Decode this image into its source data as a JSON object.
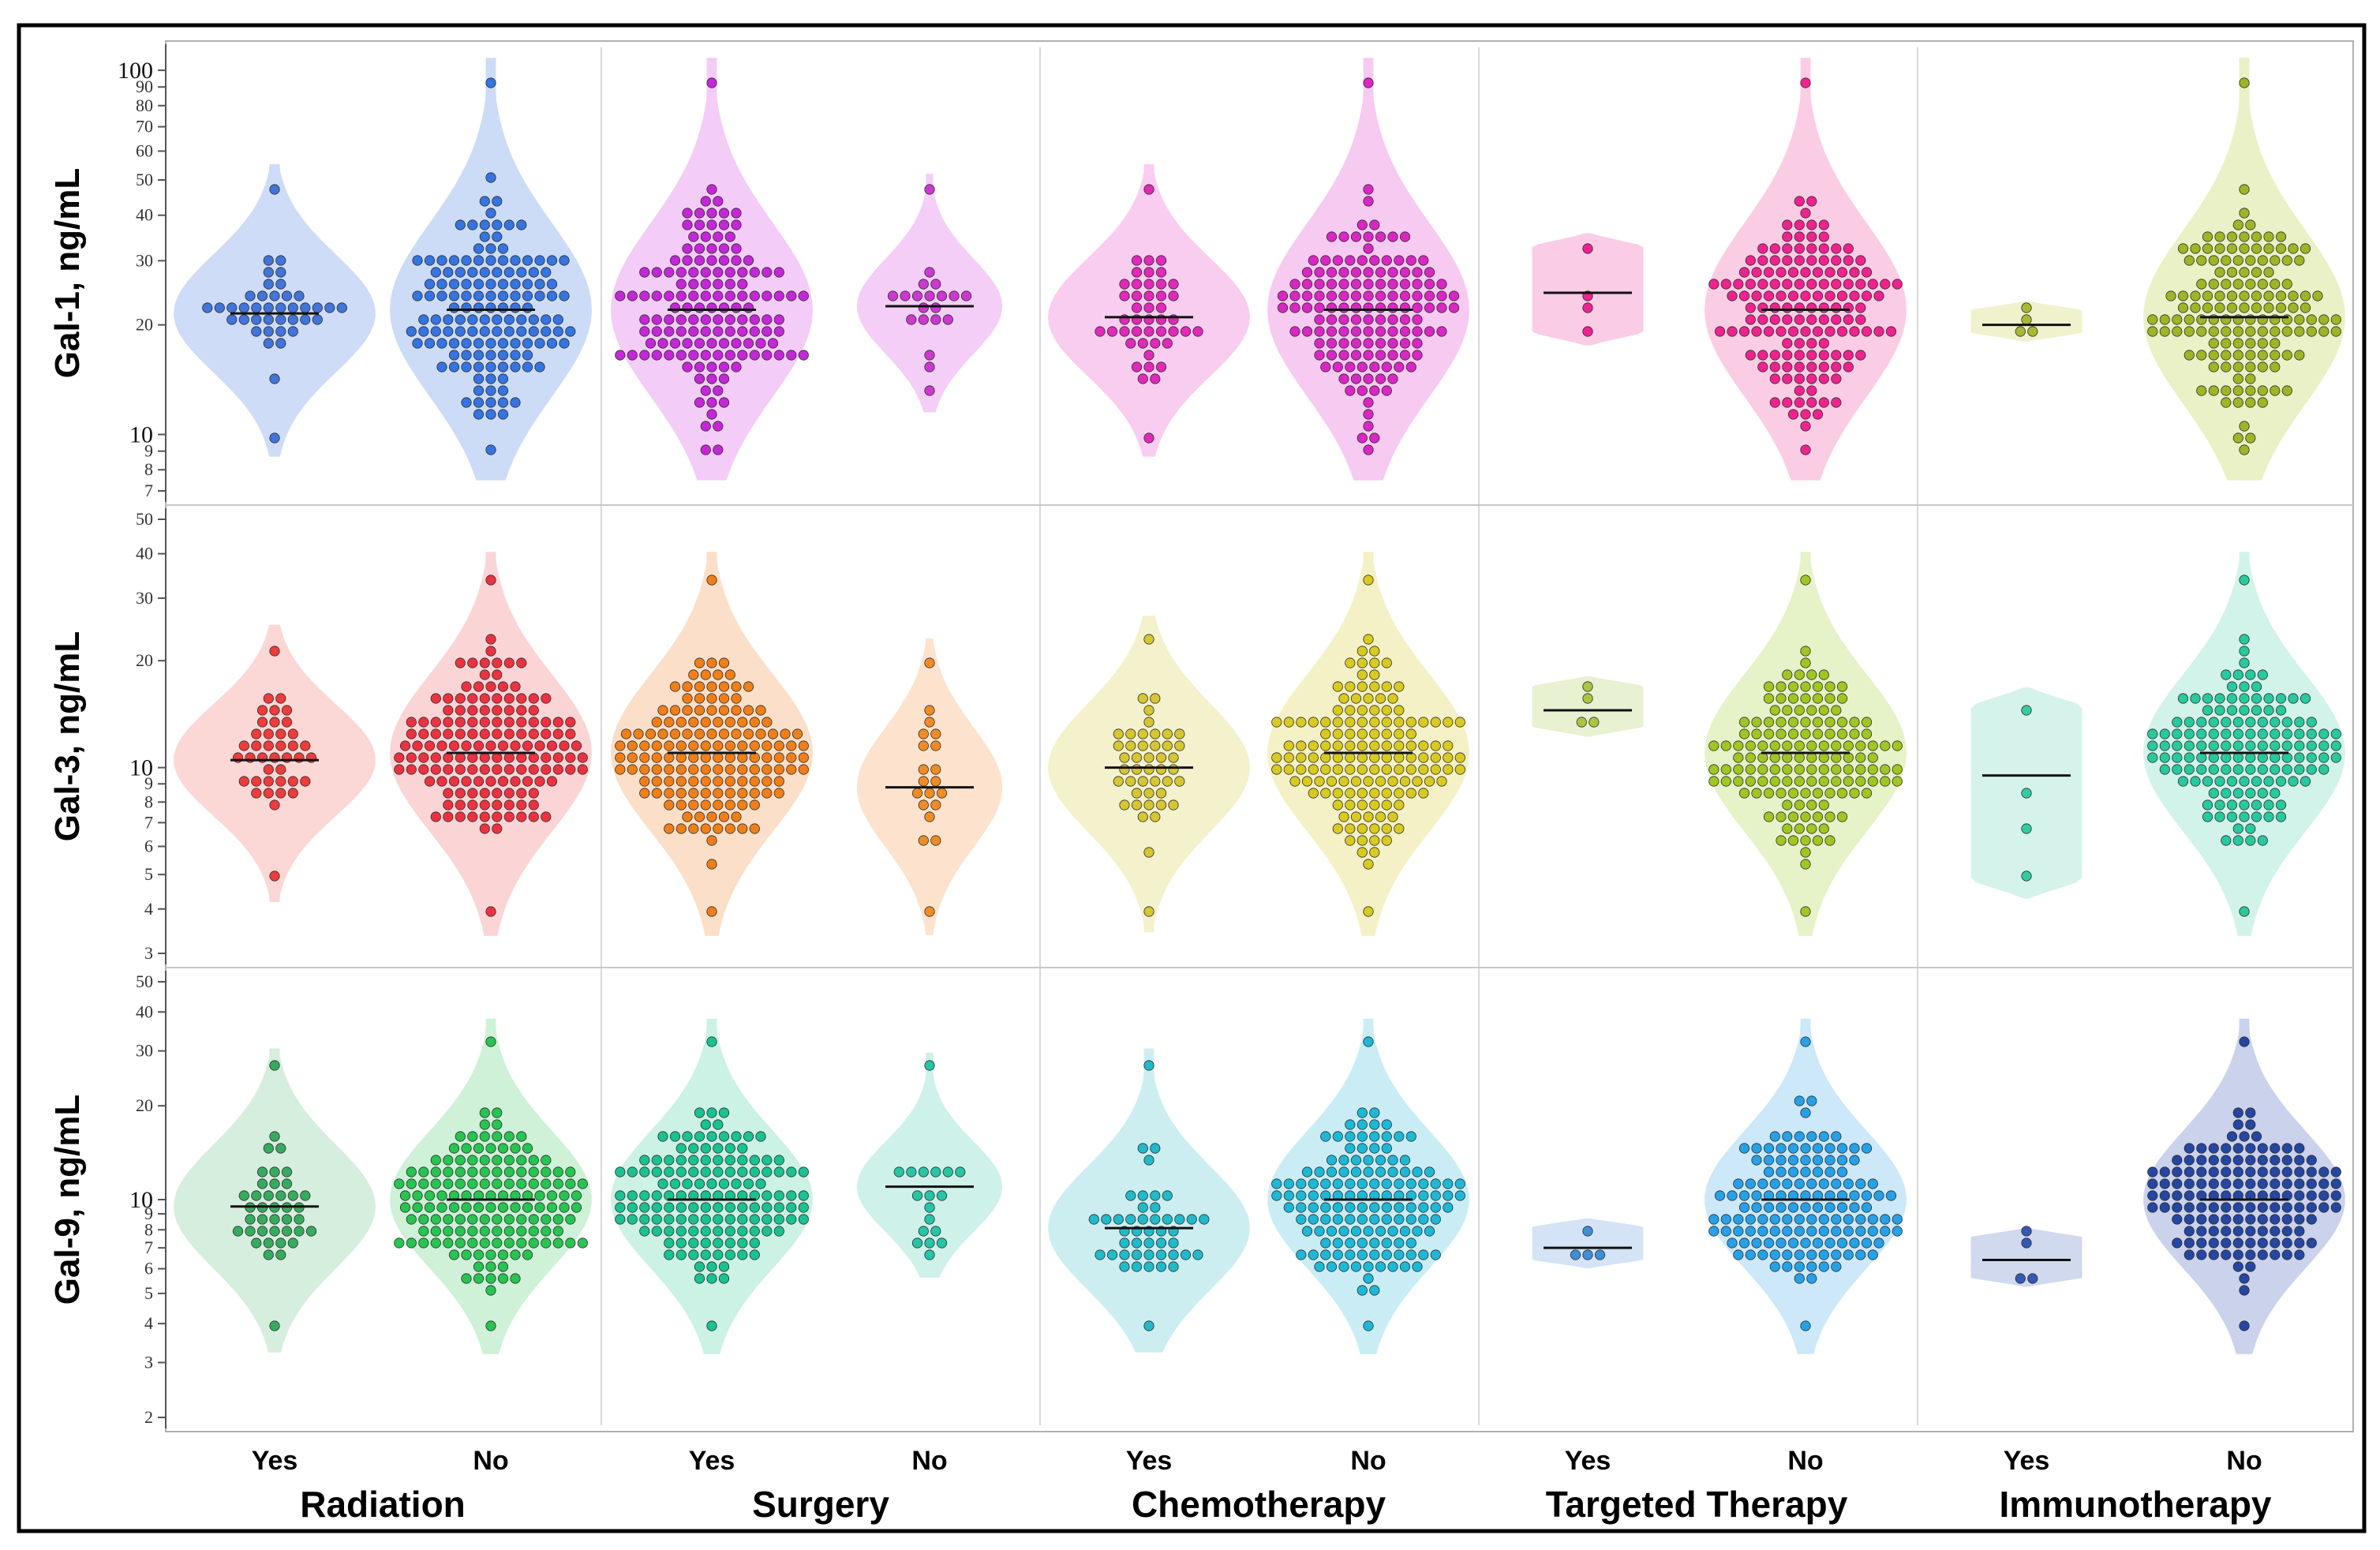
{
  "chart_data": {
    "type": "violin-swarm",
    "panels": [
      {
        "ylabel": "Gal-1, ng/mL",
        "yscale": "log",
        "ylim": [
          7,
          110
        ],
        "ticks": [
          {
            "v": 100,
            "label": "100",
            "major": true
          },
          {
            "v": 90,
            "label": "90",
            "major": false
          },
          {
            "v": 80,
            "label": "80",
            "major": false
          },
          {
            "v": 70,
            "label": "70",
            "major": false
          },
          {
            "v": 60,
            "label": "60",
            "major": false
          },
          {
            "v": 50,
            "label": "50",
            "major": false
          },
          {
            "v": 40,
            "label": "40",
            "major": false
          },
          {
            "v": 30,
            "label": "30",
            "major": false
          },
          {
            "v": 20,
            "label": "20",
            "major": false
          },
          {
            "v": 10,
            "label": "10",
            "major": true
          },
          {
            "v": 9,
            "label": "9",
            "major": false
          },
          {
            "v": 8,
            "label": "8",
            "major": false
          },
          {
            "v": 7,
            "label": "7",
            "major": false
          }
        ],
        "groups": [
          {
            "color": "#3b6fd8",
            "fill": "#c9d8f7",
            "median": 21.5,
            "min": 10,
            "max": 48,
            "n": 40
          },
          {
            "color": "#2d6fe0",
            "fill": "#c6d8f6",
            "median": 22,
            "min": 9,
            "max": 90,
            "n": 140
          },
          {
            "color": "#c21fd6",
            "fill": "#f3c6f7",
            "median": 22,
            "min": 9,
            "max": 90,
            "n": 140
          },
          {
            "color": "#c932d0",
            "fill": "#f3c9f5",
            "median": 22.5,
            "min": 13,
            "max": 46,
            "n": 20
          },
          {
            "color": "#e021b8",
            "fill": "#f8c8ee",
            "median": 21,
            "min": 10,
            "max": 48,
            "n": 45
          },
          {
            "color": "#d81fc2",
            "fill": "#f6c4ef",
            "median": 22,
            "min": 9,
            "max": 90,
            "n": 140
          },
          {
            "color": "#f0188f",
            "fill": "#fbc6e2",
            "median": 24.5,
            "min": 19,
            "max": 33,
            "n": 4
          },
          {
            "color": "#ee1a8a",
            "fill": "#fbc8e1",
            "median": 22,
            "min": 9,
            "max": 90,
            "n": 150
          },
          {
            "color": "#a7b62a",
            "fill": "#eef1c8",
            "median": 20,
            "min": 19,
            "max": 22,
            "n": 4
          },
          {
            "color": "#9bb21e",
            "fill": "#e8f0c0",
            "median": 21,
            "min": 9,
            "max": 90,
            "n": 150
          }
        ]
      },
      {
        "ylabel": "Gal-3, ng/mL",
        "yscale": "log",
        "ylim": [
          3,
          50
        ],
        "ticks": [
          {
            "v": 50,
            "label": "50",
            "major": false
          },
          {
            "v": 40,
            "label": "40",
            "major": false
          },
          {
            "v": 30,
            "label": "30",
            "major": false
          },
          {
            "v": 20,
            "label": "20",
            "major": false
          },
          {
            "v": 10,
            "label": "10",
            "major": true
          },
          {
            "v": 9,
            "label": "9",
            "major": false
          },
          {
            "v": 8,
            "label": "8",
            "major": false
          },
          {
            "v": 7,
            "label": "7",
            "major": false
          },
          {
            "v": 6,
            "label": "6",
            "major": false
          },
          {
            "v": 5,
            "label": "5",
            "major": false
          },
          {
            "v": 4,
            "label": "4",
            "major": false
          },
          {
            "v": 3,
            "label": "3",
            "major": false
          }
        ],
        "groups": [
          {
            "color": "#ec3434",
            "fill": "#fbd3d0",
            "median": 10.5,
            "min": 4.8,
            "max": 22,
            "n": 40
          },
          {
            "color": "#ec2a3a",
            "fill": "#fbd0d2",
            "median": 11,
            "min": 4,
            "max": 34,
            "n": 150
          },
          {
            "color": "#f07a10",
            "fill": "#fcdcc2",
            "median": 11,
            "min": 4,
            "max": 34,
            "n": 150
          },
          {
            "color": "#f0881e",
            "fill": "#fde0c8",
            "median": 8.8,
            "min": 3.9,
            "max": 20,
            "n": 20
          },
          {
            "color": "#d4c42a",
            "fill": "#f3efc8",
            "median": 10,
            "min": 4,
            "max": 23,
            "n": 45
          },
          {
            "color": "#d8c81a",
            "fill": "#f4efc0",
            "median": 11,
            "min": 4,
            "max": 34,
            "n": 150
          },
          {
            "color": "#a7c33a",
            "fill": "#e6f0cc",
            "median": 14.5,
            "min": 13,
            "max": 17,
            "n": 4
          },
          {
            "color": "#9cc41a",
            "fill": "#e3f1c2",
            "median": 11,
            "min": 4,
            "max": 34,
            "n": 150
          },
          {
            "color": "#2cc9a0",
            "fill": "#d0f2e8",
            "median": 9.5,
            "min": 4.8,
            "max": 15,
            "n": 4
          },
          {
            "color": "#1fc799",
            "fill": "#cdf2e7",
            "median": 11,
            "min": 4,
            "max": 34,
            "n": 150
          }
        ]
      },
      {
        "ylabel": "Gal-9, ng/mL",
        "yscale": "log",
        "ylim": [
          2,
          50
        ],
        "ticks": [
          {
            "v": 50,
            "label": "50",
            "major": false
          },
          {
            "v": 40,
            "label": "40",
            "major": false
          },
          {
            "v": 30,
            "label": "30",
            "major": false
          },
          {
            "v": 20,
            "label": "20",
            "major": false
          },
          {
            "v": 10,
            "label": "10",
            "major": true
          },
          {
            "v": 9,
            "label": "9",
            "major": false
          },
          {
            "v": 8,
            "label": "8",
            "major": false
          },
          {
            "v": 7,
            "label": "7",
            "major": false
          },
          {
            "v": 6,
            "label": "6",
            "major": false
          },
          {
            "v": 5,
            "label": "5",
            "major": false
          },
          {
            "v": 4,
            "label": "4",
            "major": false
          },
          {
            "v": 3,
            "label": "3",
            "major": false
          },
          {
            "v": 2,
            "label": "2",
            "major": false
          }
        ],
        "groups": [
          {
            "color": "#2ea85a",
            "fill": "#d2ecd9",
            "median": 9.5,
            "min": 3.8,
            "max": 26,
            "n": 40
          },
          {
            "color": "#1fc24a",
            "fill": "#c9f0d3",
            "median": 10,
            "min": 3.8,
            "max": 32,
            "n": 150
          },
          {
            "color": "#10c08c",
            "fill": "#c6efe2",
            "median": 10,
            "min": 3.8,
            "max": 32,
            "n": 150
          },
          {
            "color": "#1cc3a2",
            "fill": "#c9f0e8",
            "median": 11,
            "min": 6.4,
            "max": 26,
            "n": 18
          },
          {
            "color": "#18b8c8",
            "fill": "#c6ecf0",
            "median": 8.1,
            "min": 3.8,
            "max": 26,
            "n": 45
          },
          {
            "color": "#15b6d6",
            "fill": "#c4ebf4",
            "median": 10,
            "min": 3.8,
            "max": 32,
            "n": 150
          },
          {
            "color": "#3a8ad6",
            "fill": "#cfe1f5",
            "median": 7,
            "min": 6.4,
            "max": 8.2,
            "n": 4
          },
          {
            "color": "#1e9ee8",
            "fill": "#c6e5f8",
            "median": 10,
            "min": 3.8,
            "max": 32,
            "n": 150
          },
          {
            "color": "#2d52b0",
            "fill": "#cbd5ec",
            "median": 6.4,
            "min": 5.6,
            "max": 7.6,
            "n": 4
          },
          {
            "color": "#1d3f9e",
            "fill": "#c4cdea",
            "median": 10,
            "min": 3.8,
            "max": 32,
            "n": 160
          }
        ]
      }
    ],
    "categories": [
      "Yes",
      "No",
      "Yes",
      "No",
      "Yes",
      "No",
      "Yes",
      "No",
      "Yes",
      "No"
    ],
    "treatments": [
      "Radiation",
      "Surgery",
      "Chemotherapy",
      "Targeted Therapy",
      "Immunotherapy"
    ]
  }
}
